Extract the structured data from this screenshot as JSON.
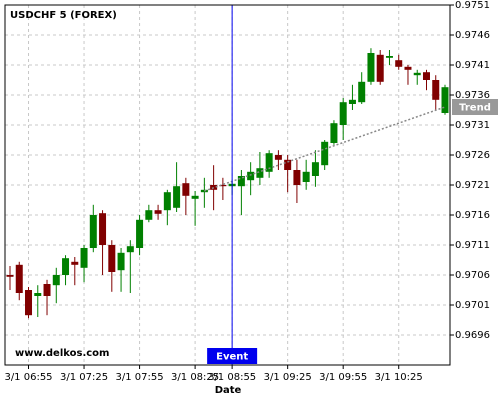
{
  "chart_data": {
    "type": "candlestick",
    "title": "USDCHF 5 (FOREX)",
    "watermark": "www.delkos.com",
    "x_label": "Date",
    "categories": [
      null,
      null,
      "3/1 06:55",
      null,
      null,
      null,
      null,
      null,
      "3/1 07:25",
      null,
      null,
      null,
      null,
      null,
      "3/1 07:55",
      null,
      null,
      null,
      null,
      null,
      "3/1 08:25",
      null,
      null,
      null,
      "3/1 08:55",
      null,
      null,
      null,
      null,
      null,
      "3/1 09:25",
      null,
      null,
      null,
      null,
      null,
      "3/1 09:55",
      null,
      null,
      null,
      null,
      null,
      "3/1 10:25",
      null,
      null,
      null,
      null,
      null
    ],
    "open": [
      0.9706,
      0.97077,
      0.97035,
      0.97025,
      0.97045,
      0.97043,
      0.9706,
      0.97082,
      0.97072,
      0.97105,
      0.97163,
      0.9711,
      0.97068,
      0.97098,
      0.97105,
      0.97152,
      0.97168,
      0.97168,
      0.97172,
      0.97213,
      0.97187,
      0.97198,
      0.9721,
      0.9721,
      0.97208,
      0.97208,
      0.97218,
      0.97222,
      0.97232,
      0.9726,
      0.97252,
      0.97235,
      0.97215,
      0.97225,
      0.97243,
      0.9728,
      0.9731,
      0.97345,
      0.97348,
      0.97382,
      0.97427,
      0.97422,
      0.97418,
      0.97407,
      0.97393,
      0.97398,
      0.97385,
      0.9733
    ],
    "high": [
      0.97075,
      0.97082,
      0.9704,
      0.97043,
      0.97052,
      0.97072,
      0.97093,
      0.9709,
      0.9711,
      0.97177,
      0.97168,
      0.97118,
      0.97105,
      0.97118,
      0.9716,
      0.97177,
      0.97177,
      0.97202,
      0.97248,
      0.97222,
      0.972,
      0.97222,
      0.97243,
      0.97222,
      0.97215,
      0.97235,
      0.97248,
      0.97265,
      0.97268,
      0.97268,
      0.9726,
      0.97252,
      0.97252,
      0.97268,
      0.97285,
      0.97318,
      0.97355,
      0.97377,
      0.97398,
      0.97438,
      0.97435,
      0.97435,
      0.97427,
      0.9741,
      0.97402,
      0.97402,
      0.97393,
      0.97377
    ],
    "low": [
      0.97035,
      0.97018,
      0.96988,
      0.9699,
      0.96993,
      0.97013,
      0.97043,
      0.97043,
      0.97048,
      0.97098,
      0.9706,
      0.97032,
      0.97032,
      0.9703,
      0.97093,
      0.97148,
      0.97152,
      0.97143,
      0.97165,
      0.9716,
      0.97142,
      0.97172,
      0.97168,
      0.97185,
      0.97193,
      0.9716,
      0.97193,
      0.9721,
      0.97222,
      0.97235,
      0.97198,
      0.9718,
      0.97202,
      0.97207,
      0.97235,
      0.97277,
      0.97285,
      0.97335,
      0.97345,
      0.97377,
      0.97377,
      0.9741,
      0.97402,
      0.97377,
      0.97377,
      0.97368,
      0.97335,
      0.97327
    ],
    "close": [
      0.97057,
      0.9703,
      0.96993,
      0.9703,
      0.97025,
      0.9706,
      0.97088,
      0.97077,
      0.97105,
      0.9716,
      0.9711,
      0.97065,
      0.97097,
      0.97108,
      0.97152,
      0.97168,
      0.97162,
      0.97198,
      0.97208,
      0.97192,
      0.97192,
      0.97202,
      0.97202,
      0.97208,
      0.97212,
      0.97225,
      0.97232,
      0.97238,
      0.97263,
      0.97252,
      0.97235,
      0.9721,
      0.97232,
      0.97248,
      0.97282,
      0.97313,
      0.97348,
      0.97352,
      0.97382,
      0.9743,
      0.97382,
      0.97425,
      0.97407,
      0.97402,
      0.97397,
      0.97385,
      0.97352,
      0.97373
    ],
    "up_color": "#008000",
    "down_color": "#800000",
    "ylim": [
      0.9691,
      0.9751
    ],
    "yticks": [
      0.9696,
      0.9701,
      0.9706,
      0.9711,
      0.9716,
      0.9721,
      0.9726,
      0.9731,
      0.9736,
      0.9741,
      0.9746,
      0.9751
    ],
    "grid": true,
    "event": {
      "label": "Event",
      "x": 24,
      "color": "#0000ee"
    },
    "trend": {
      "label": "Trend",
      "x": [
        21,
        47
      ],
      "values": [
        0.972,
        0.9734
      ],
      "color": "#888888"
    }
  }
}
